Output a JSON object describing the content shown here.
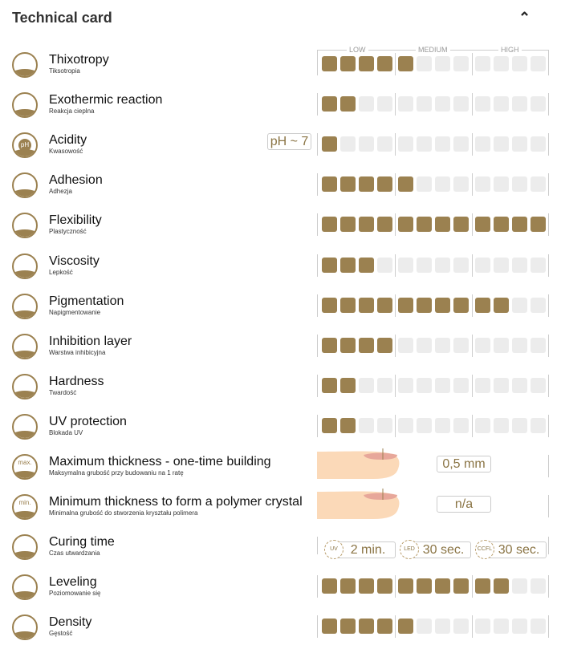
{
  "header": {
    "title": "Technical card",
    "collapse_icon": "chevron-up-icon"
  },
  "scale": {
    "low": "LOW",
    "medium": "MEDIUM",
    "high": "HIGH",
    "max": 12
  },
  "accent": "#9b8150",
  "rows": [
    {
      "name": "Thixotropy",
      "sub": "Tiksotropia",
      "value": 5,
      "icon": "thixotropy-icon"
    },
    {
      "name": "Exothermic reaction",
      "sub": "Reakcja cieplna",
      "value": 2,
      "icon": "heat-icon"
    },
    {
      "name": "Acidity",
      "sub": "Kwasowość",
      "value": 1,
      "badge": "pH ~ 7",
      "icon": "ph-icon",
      "icon_text": "pH"
    },
    {
      "name": "Adhesion",
      "sub": "Adhezja",
      "value": 5,
      "icon": "adhesion-icon"
    },
    {
      "name": "Flexibility",
      "sub": "Plastyczność",
      "value": 12,
      "icon": "flexibility-icon"
    },
    {
      "name": "Viscosity",
      "sub": "Lepkość",
      "value": 3,
      "icon": "viscosity-icon"
    },
    {
      "name": "Pigmentation",
      "sub": "Napigmentowanie",
      "value": 10,
      "icon": "pigment-drops-icon"
    },
    {
      "name": "Inhibition layer",
      "sub": "Warstwa inhibicyjna",
      "value": 4,
      "icon": "inhibition-layer-icon"
    },
    {
      "name": "Hardness",
      "sub": "Twardość",
      "value": 2,
      "icon": "hammer-icon"
    },
    {
      "name": "UV protection",
      "sub": "Blokada UV",
      "value": 2,
      "icon": "sun-shield-icon"
    },
    {
      "name": "Maximum thickness - one-time building",
      "sub": "Maksymalna grubość przy budowaniu na 1 ratę",
      "box": "0,5 mm",
      "icon": "max-thickness-icon",
      "icon_text": "max."
    },
    {
      "name": "Minimum thickness to form a polymer crystal",
      "sub": "Minimalna grubość do stworzenia kryształu polimera",
      "box": "n/a",
      "icon": "min-thickness-icon",
      "icon_text": "min."
    },
    {
      "name": "Curing time",
      "sub": "Czas utwardzania",
      "icon": "lamp-icon",
      "curing": [
        {
          "lamp": "UV",
          "time": "2 min."
        },
        {
          "lamp": "LED",
          "time": "30 sec."
        },
        {
          "lamp": "CCFL",
          "time": "30 sec."
        }
      ]
    },
    {
      "name": "Leveling",
      "sub": "Poziomowanie się",
      "value": 10,
      "icon": "leveling-icon"
    },
    {
      "name": "Density",
      "sub": "Gęstość",
      "value": 5,
      "icon": "density-icon"
    }
  ]
}
